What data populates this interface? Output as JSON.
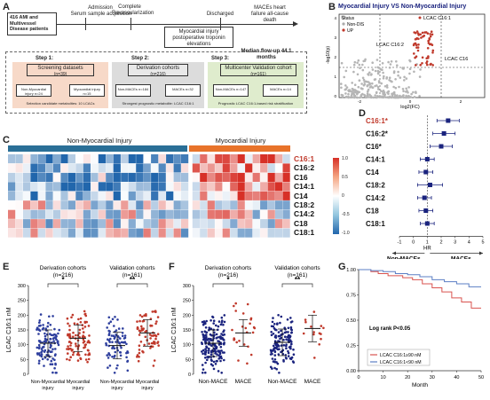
{
  "panel_labels": {
    "a": "A",
    "b": "B",
    "c": "C",
    "d": "D",
    "e": "E",
    "f": "F",
    "g": "G"
  },
  "panel_a": {
    "patients_box": "416 AMI and Multivessel Disease patients",
    "admission": "Admission",
    "serum": "Serum sample acquisition",
    "complete": "Complete Revascularization",
    "discharged": "Discharged",
    "injury_box": "Myocardial injury postoperative troponin elevations",
    "maces": "MACEs heart failure all-cause death",
    "followup": "Median flow-up 44.1 months",
    "step1": {
      "title": "Step 1:",
      "box": "Screening datasets",
      "n": "(n=39)",
      "left": "Non-Myocardial injury n=24",
      "right": "Myocardial injury n=15",
      "foot": "Selection candidate metabolites: 10 LCACs"
    },
    "step2": {
      "title": "Step 2:",
      "box": "Derivation cohorts",
      "n": "(n=216)",
      "left": "Non-MACEs n=184",
      "right": "MACEs n=32",
      "foot": "Strongest prognostic metabolite: LCAC C16:1"
    },
    "step3": {
      "title": "Step 3:",
      "box": "Multicenter  Validation cohort",
      "n": "(n=161)",
      "left": "Non-MACEs n=147",
      "right": "MACEs n=14",
      "foot": "Prognostic LCAC C16:1-based risk stratification"
    }
  },
  "panel_b": {
    "title": "Myocardial Injury VS Non-Myocardial Injury",
    "legend_title": "Status",
    "legend": [
      "Non-DIS",
      "UP"
    ],
    "xlabel": "log2(FC)",
    "ylabel": "-log10(p)",
    "ann": [
      "LCAC C16:1",
      "LCAC C16:2",
      "LCAC C16"
    ],
    "xticks": [
      "-2",
      "0",
      "2"
    ],
    "yticks": [
      "0",
      "1",
      "2",
      "3",
      "4"
    ]
  },
  "panel_c": {
    "left_title": "Non-Myocardial Injury",
    "right_title": "Myocardial Injury",
    "rows": [
      "C16:1",
      "C16:2",
      "C16",
      "C14:1",
      "C14",
      "C18:2",
      "C14:2",
      "C18",
      "C18:1"
    ],
    "legend_ticks": [
      "1.0",
      "0.5",
      "0",
      "-0.5",
      "-1.0"
    ]
  },
  "chart_data": [
    {
      "type": "heatmap",
      "panel": "C",
      "rows": [
        "C16:1",
        "C16:2",
        "C16",
        "C14:1",
        "C14",
        "C18:2",
        "C14:2",
        "C18",
        "C18:1"
      ],
      "groups": [
        "Non-Myocardial Injury",
        "Myocardial Injury"
      ],
      "scale": [
        -1.0,
        1.0
      ]
    },
    {
      "type": "scatter",
      "panel": "D",
      "title": "forest plot",
      "categories": [
        "C16:1*",
        "C16:2*",
        "C16*",
        "C14:1",
        "C14",
        "C18:2",
        "C14:2",
        "C18",
        "C18:1"
      ],
      "hr": [
        2.5,
        2.2,
        2.0,
        1.0,
        0.9,
        1.2,
        0.8,
        0.9,
        1.0
      ],
      "ci_low": [
        1.7,
        1.4,
        1.2,
        0.5,
        0.4,
        0.3,
        0.3,
        0.4,
        0.5
      ],
      "ci_high": [
        3.3,
        3.0,
        2.8,
        1.5,
        1.4,
        2.1,
        1.3,
        1.4,
        1.5
      ],
      "xlim": [
        -1,
        5
      ],
      "xticks": [
        "-1",
        "0",
        "1",
        "2",
        "3",
        "4",
        "5"
      ],
      "xlabel": "HR",
      "left_label": "Non-MACEs",
      "right_label": "MACEs"
    },
    {
      "type": "scatter",
      "panel": "E",
      "ylabel": "LCAC C16:1 nM",
      "ylim": [
        0,
        300
      ],
      "yticks": [
        "0",
        "50",
        "100",
        "150",
        "200",
        "250",
        "300"
      ],
      "group_titles": [
        [
          "Derivation cohorts",
          "(n=216)"
        ],
        [
          "Validation cohorts",
          "(n=161)"
        ]
      ],
      "sig": [
        "*",
        "**"
      ],
      "categories": [
        "Non-Myocardial injury",
        "Myocardial injury",
        "Non-Myocardial injury",
        "Myocardial injury"
      ],
      "medians": [
        105,
        122,
        97,
        140
      ]
    },
    {
      "type": "scatter",
      "panel": "F",
      "ylabel": "LCAC C16:1 nM",
      "ylim": [
        0,
        300
      ],
      "yticks": [
        "0",
        "50",
        "100",
        "150",
        "200",
        "250",
        "300"
      ],
      "group_titles": [
        [
          "Derivation cohorts",
          "(n=216)"
        ],
        [
          "Validation cohorts",
          "(n=161)"
        ]
      ],
      "sig": [
        "*",
        "**"
      ],
      "categories": [
        "Non-MACE",
        "MACE",
        "Non-MACE",
        "MACE"
      ],
      "medians": [
        105,
        140,
        108,
        155
      ]
    },
    {
      "type": "line",
      "panel": "G",
      "xlabel": "Month",
      "xlim": [
        0,
        50
      ],
      "ylim": [
        0,
        1
      ],
      "xticks": [
        "0",
        "10",
        "20",
        "30",
        "40",
        "50"
      ],
      "yticks": [
        "0.00",
        "0.25",
        "0.50",
        "0.75",
        "1.00"
      ],
      "annotation": "Log rank P<0.05",
      "series": [
        {
          "name": "LCAC C16:1≥90 nM",
          "color": "#d9534f",
          "x": [
            0,
            5,
            8,
            12,
            18,
            22,
            26,
            30,
            34,
            38,
            42,
            46,
            50
          ],
          "y": [
            1.0,
            0.98,
            0.96,
            0.94,
            0.92,
            0.9,
            0.86,
            0.82,
            0.78,
            0.72,
            0.68,
            0.62,
            0.62
          ]
        },
        {
          "name": "LCAC C16:1<90 nM",
          "color": "#5b7fc4",
          "x": [
            0,
            5,
            10,
            15,
            20,
            25,
            30,
            35,
            40,
            45,
            50
          ],
          "y": [
            1.0,
            0.99,
            0.98,
            0.96,
            0.95,
            0.93,
            0.9,
            0.88,
            0.86,
            0.83,
            0.83
          ]
        }
      ]
    }
  ],
  "colors": {
    "red": "#c0392b",
    "blue": "#1f3f8f",
    "navy": "#1a237e",
    "orange": "#e8732a",
    "teal": "#2a6f97"
  }
}
